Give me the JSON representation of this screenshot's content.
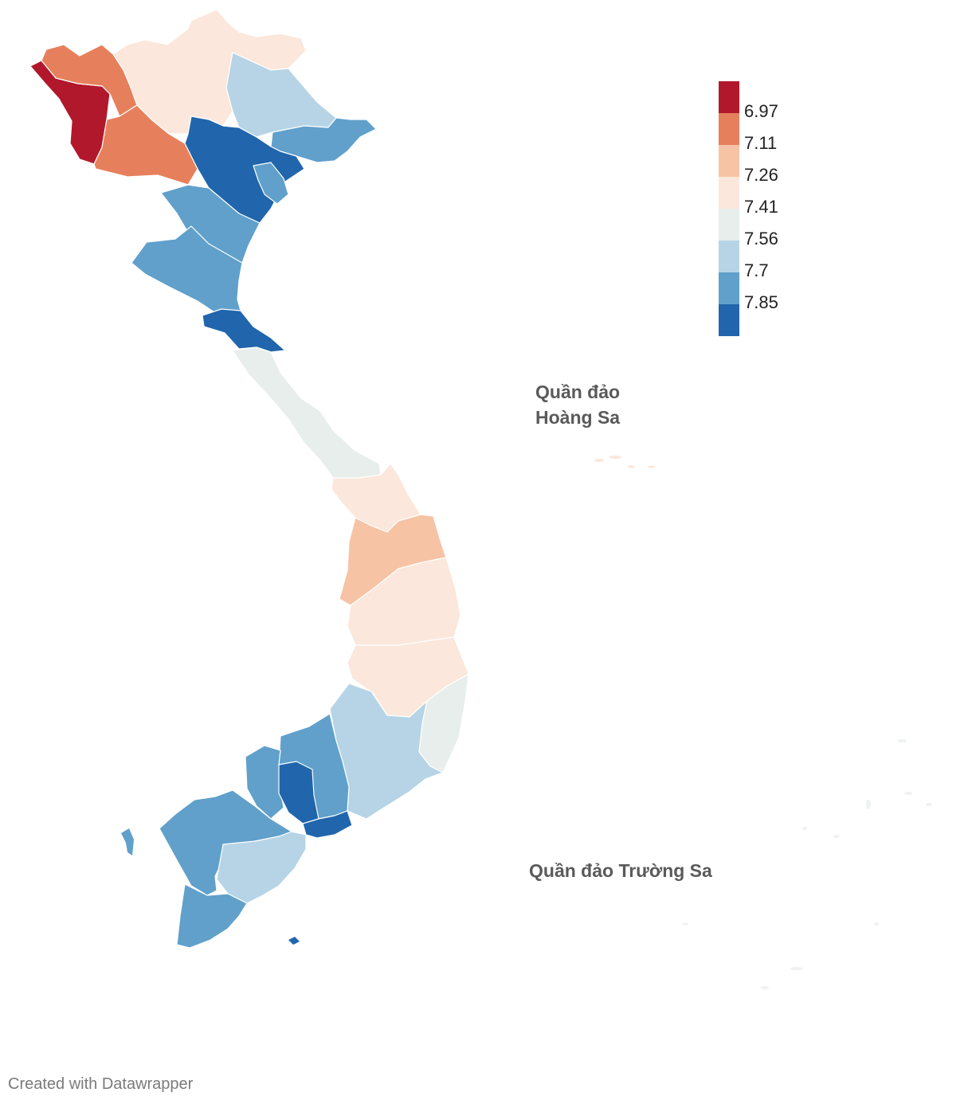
{
  "map": {
    "legend": {
      "colors": [
        "#b2182b",
        "#e6805c",
        "#f7c3a5",
        "#fbe7db",
        "#e8eeec",
        "#b6d4e6",
        "#60a0cb",
        "#2166ac"
      ],
      "thresholds": [
        "6.97",
        "7.11",
        "7.26",
        "7.41",
        "7.56",
        "7.7",
        "7.85"
      ]
    },
    "labels": {
      "hoang_sa_line1": "Quần đảo",
      "hoang_sa_line2": "Hoàng Sa",
      "truong_sa": "Quần đảo Trường Sa"
    },
    "credit": "Created with Datawrapper"
  }
}
